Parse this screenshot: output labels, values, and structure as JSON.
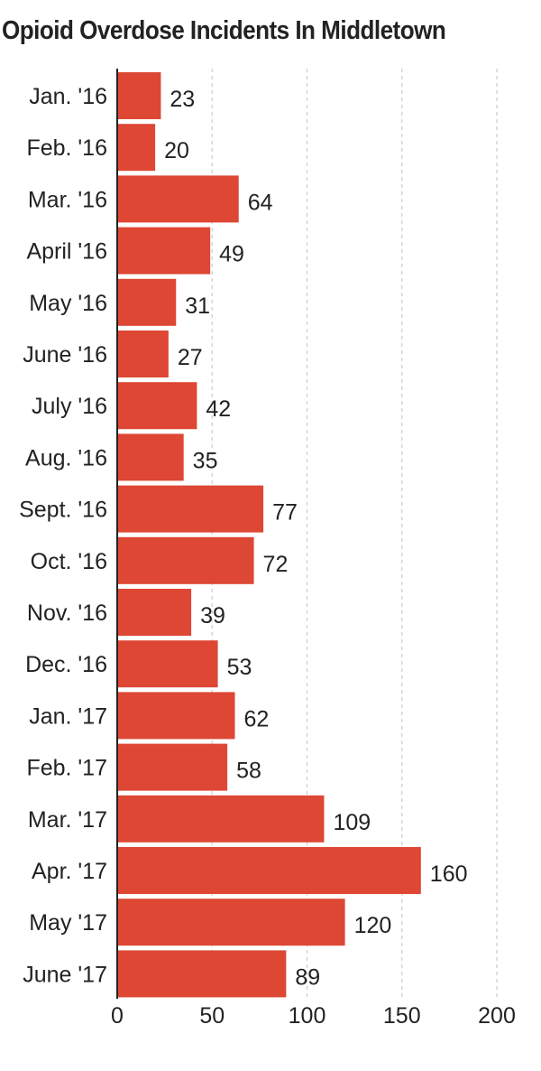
{
  "title": "Opioid Overdose Incidents In Middletown",
  "colors": {
    "bar": "#dd4733",
    "text": "#222222",
    "grid": "#cccccc",
    "axis": "#222222"
  },
  "chart_data": {
    "type": "bar",
    "orientation": "horizontal",
    "title": "Opioid Overdose Incidents In Middletown",
    "xlabel": "",
    "ylabel": "",
    "categories": [
      "Jan. '16",
      "Feb. '16",
      "Mar. '16",
      "April '16",
      "May '16",
      "June '16",
      "July '16",
      "Aug. '16",
      "Sept. '16",
      "Oct. '16",
      "Nov. '16",
      "Dec. '16",
      "Jan. '17",
      "Feb. '17",
      "Mar. '17",
      "Apr. '17",
      "May '17",
      "June '17"
    ],
    "values": [
      23,
      20,
      64,
      49,
      31,
      27,
      42,
      35,
      77,
      72,
      39,
      53,
      62,
      58,
      109,
      160,
      120,
      89
    ],
    "xlim": [
      0,
      200
    ],
    "xticks": [
      "0",
      "50",
      "100",
      "150",
      "200"
    ],
    "grid": true,
    "legend": "none"
  }
}
